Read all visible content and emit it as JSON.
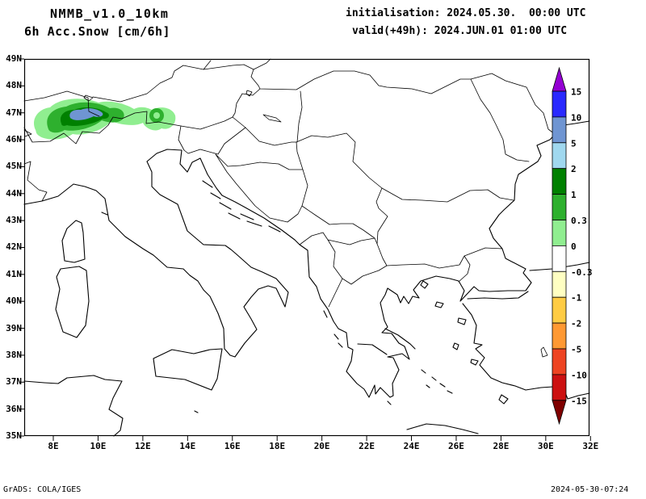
{
  "header": {
    "model": "NMMB_v1.0_10km",
    "product": "6h Acc.Snow [cm/6h]",
    "init": "initialisation: 2024.05.30.  00:00 UTC",
    "valid": "valid(+49h): 2024.JUN.01 01:00 UTC"
  },
  "footer": {
    "left": "GrADS: COLA/IGES",
    "right": "2024-05-30-07:24"
  },
  "map": {
    "lat_range": "35N to 49N",
    "lon_range": "8E to 32E",
    "lat_labels": [
      "49N",
      "48N",
      "47N",
      "46N",
      "45N",
      "44N",
      "43N",
      "42N",
      "41N",
      "40N",
      "39N",
      "38N",
      "37N",
      "36N",
      "35N"
    ],
    "lon_labels": [
      "8E",
      "10E",
      "12E",
      "14E",
      "16E",
      "18E",
      "20E",
      "22E",
      "24E",
      "26E",
      "28E",
      "30E",
      "32E"
    ]
  },
  "colorbar": {
    "levels": [
      "15",
      "10",
      "5",
      "2",
      "1",
      "0.3",
      "0",
      "-0.3",
      "-1",
      "-2",
      "-5",
      "-10",
      "-15"
    ],
    "segment_colors": [
      "#2929ff",
      "#6f95d2",
      "#a0d8ef",
      "#008000",
      "#2eb02e",
      "#90ee90",
      "#ffffff",
      "#ffffc2",
      "#ffcc44",
      "#ff9933",
      "#ee4422",
      "#cc1111"
    ],
    "top_arrow_color": "#9400d3",
    "bottom_arrow_color": "#800000"
  },
  "snow_patch": {
    "description": "6h accumulated snow shaded over the Alps",
    "approx_extent": "7.3E-13.2E, 46.2N-47.2N",
    "max_shaded_band": "5-10 cm/6h",
    "colors": {
      "light": "#90ee90",
      "mid": "#2eb02e",
      "dark": "#008000",
      "core": "#6f95d2"
    }
  }
}
